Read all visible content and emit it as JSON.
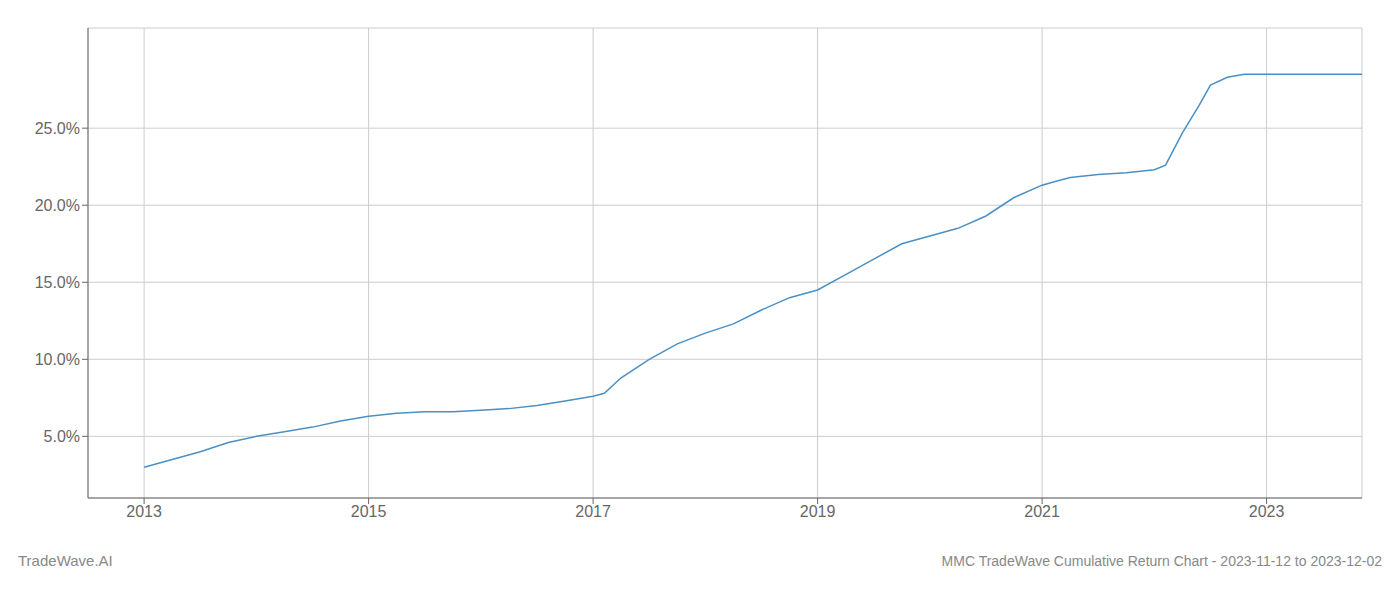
{
  "chart_data": {
    "type": "line",
    "title": "MMC TradeWave Cumulative Return Chart - 2023-11-12 to 2023-12-02",
    "annotations": [
      "TradeWave.AI"
    ],
    "color": "#4a90c4",
    "grid": true,
    "xlim": [
      2012.5,
      2023.85
    ],
    "ylim": [
      0.01,
      0.315
    ],
    "xticks": [
      2013,
      2015,
      2017,
      2019,
      2021,
      2023
    ],
    "yticks": [
      {
        "value": 0.05,
        "label": "5.0%"
      },
      {
        "value": 0.1,
        "label": "10.0%"
      },
      {
        "value": 0.15,
        "label": "15.0%"
      },
      {
        "value": 0.2,
        "label": "20.0%"
      },
      {
        "value": 0.25,
        "label": "25.0%"
      }
    ],
    "x": [
      2013.0,
      2013.25,
      2013.5,
      2013.75,
      2014.0,
      2014.25,
      2014.5,
      2014.75,
      2015.0,
      2015.25,
      2015.5,
      2015.75,
      2016.0,
      2016.25,
      2016.5,
      2016.75,
      2017.0,
      2017.1,
      2017.25,
      2017.5,
      2017.75,
      2018.0,
      2018.25,
      2018.5,
      2018.75,
      2019.0,
      2019.25,
      2019.5,
      2019.75,
      2020.0,
      2020.25,
      2020.5,
      2020.75,
      2021.0,
      2021.1,
      2021.25,
      2021.5,
      2021.75,
      2022.0,
      2022.1,
      2022.25,
      2022.4,
      2022.5,
      2022.65,
      2022.8,
      2023.0,
      2023.5,
      2023.85
    ],
    "values": [
      0.03,
      0.035,
      0.04,
      0.046,
      0.05,
      0.053,
      0.056,
      0.06,
      0.063,
      0.065,
      0.066,
      0.066,
      0.067,
      0.068,
      0.07,
      0.073,
      0.076,
      0.078,
      0.088,
      0.1,
      0.11,
      0.117,
      0.123,
      0.132,
      0.14,
      0.145,
      0.155,
      0.165,
      0.175,
      0.18,
      0.185,
      0.193,
      0.205,
      0.213,
      0.215,
      0.218,
      0.22,
      0.221,
      0.223,
      0.226,
      0.247,
      0.265,
      0.278,
      0.283,
      0.285,
      0.285,
      0.285,
      0.285
    ]
  }
}
